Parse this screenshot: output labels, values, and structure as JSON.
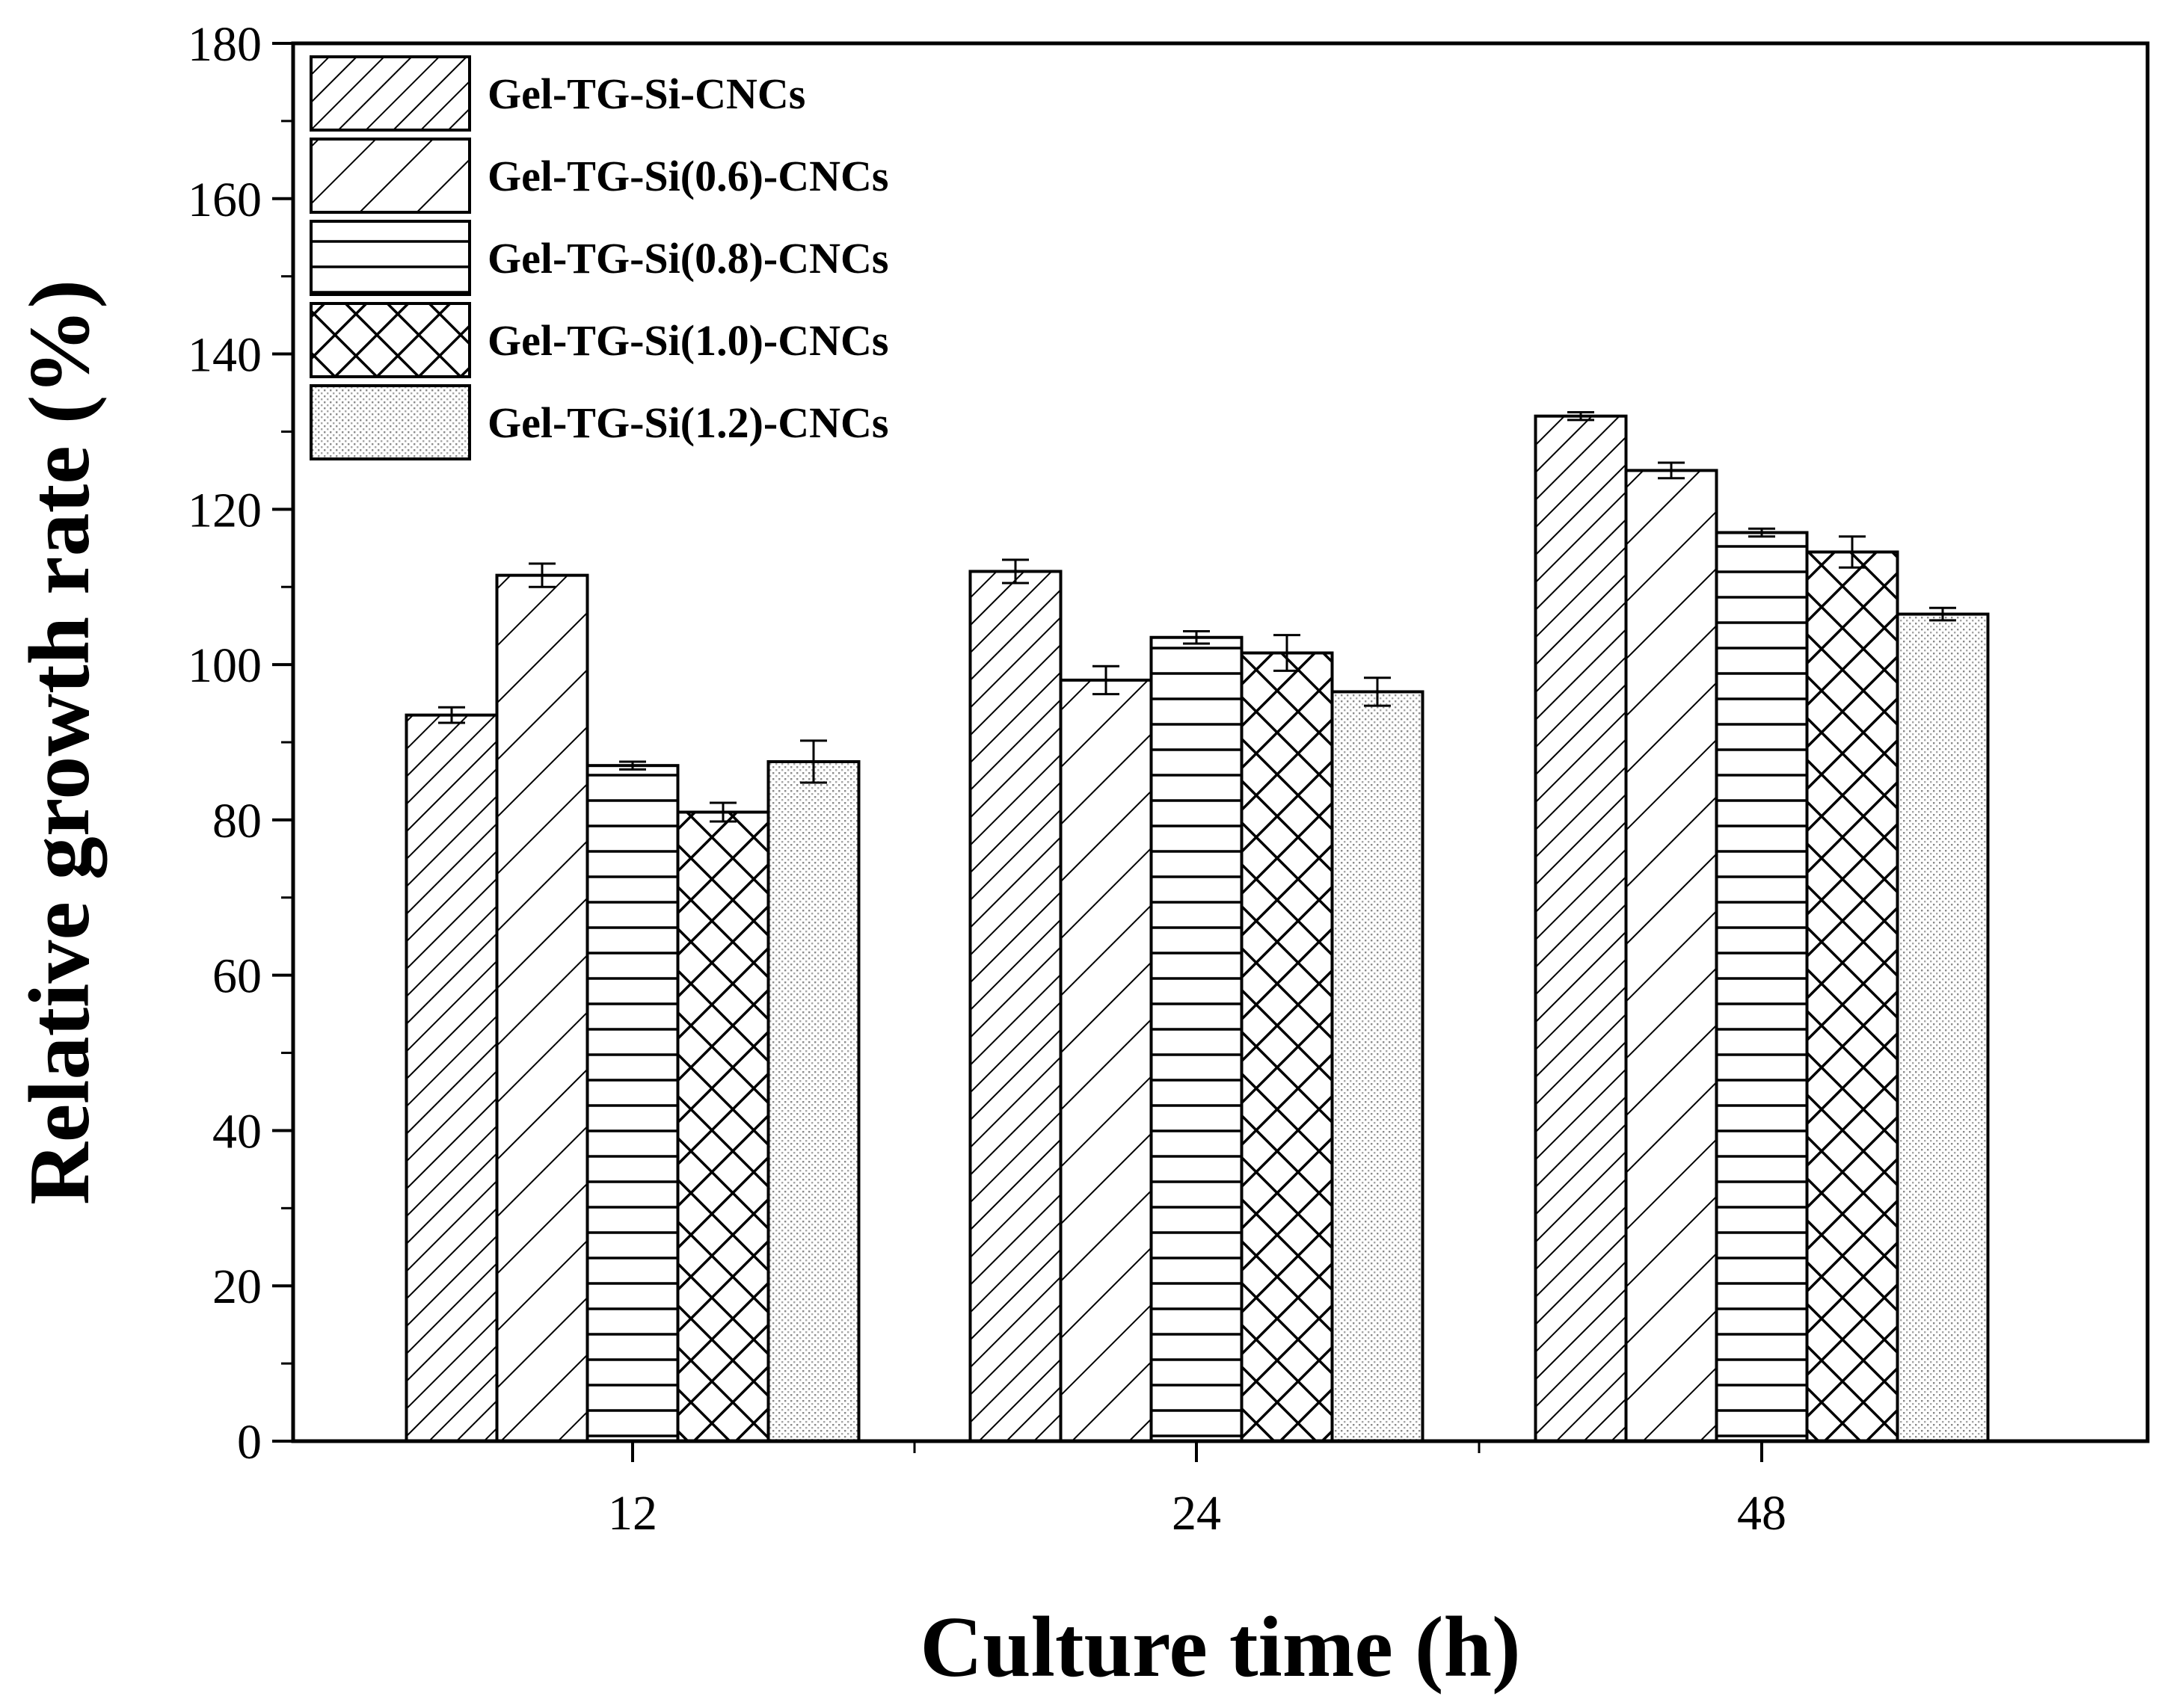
{
  "chart_data": {
    "type": "bar",
    "title": "",
    "xlabel": "Culture time (h)",
    "ylabel": "Relative growth rate  (%)",
    "categories": [
      "12",
      "24",
      "48"
    ],
    "ylim": [
      0,
      180
    ],
    "yticks": [
      0,
      20,
      40,
      60,
      80,
      100,
      120,
      140,
      160,
      180
    ],
    "grid": false,
    "legend_position": "top-left",
    "series": [
      {
        "name": "Gel-TG-Si-CNCs",
        "pattern": "dense-diagonal",
        "values": [
          93.5,
          112.0,
          132.0
        ],
        "errors": [
          1.0,
          1.5,
          0.5
        ]
      },
      {
        "name": "Gel-TG-Si(0.6)-CNCs",
        "pattern": "sparse-diagonal",
        "values": [
          111.5,
          98.0,
          125.0
        ],
        "errors": [
          1.5,
          1.8,
          1.0
        ]
      },
      {
        "name": "Gel-TG-Si(0.8)-CNCs",
        "pattern": "horizontal",
        "values": [
          87.0,
          103.5,
          117.0
        ],
        "errors": [
          0.5,
          0.8,
          0.5
        ]
      },
      {
        "name": "Gel-TG-Si(1.0)-CNCs",
        "pattern": "crosshatch",
        "values": [
          81.0,
          101.5,
          114.5
        ],
        "errors": [
          1.2,
          2.3,
          2.0
        ]
      },
      {
        "name": "Gel-TG-Si(1.2)-CNCs",
        "pattern": "dots",
        "values": [
          87.5,
          96.5,
          106.5
        ],
        "errors": [
          2.7,
          1.8,
          0.8
        ]
      }
    ]
  }
}
